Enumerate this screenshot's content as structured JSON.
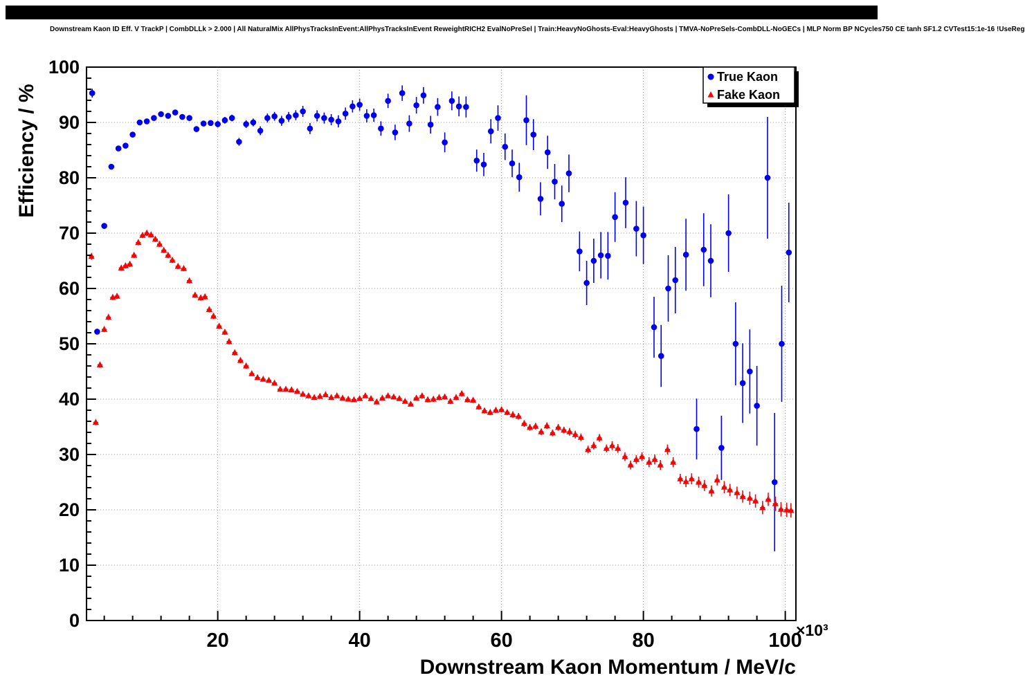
{
  "chart_data": {
    "type": "scatter",
    "title": "Downstream Kaon ID Eff. V TrackP | CombDLLk > 2.000 | All NaturalMix AllPhysTracksInEvent:AllPhysTracksInEvent ReweightRICH2 EvalNoPreSel | Train:HeavyNoGhosts-Eval:HeavyGhosts | TMVA-NoPreSels-CombDLL-NoGECs | MLP Norm BP NCycles750 CE tanh SF1.2 CVTest15:1e-16 !UseReg",
    "xlabel": "Downstream Kaon Momentum / MeV/c",
    "ylabel": "Efficiency / %",
    "x_scale_label": "×10³",
    "xlim": [
      1.5,
      101.5
    ],
    "ylim": [
      0,
      100
    ],
    "x_ticks": [
      20,
      40,
      60,
      80,
      100
    ],
    "y_ticks": [
      0,
      10,
      20,
      30,
      40,
      50,
      60,
      70,
      80,
      90,
      100
    ],
    "grid": true,
    "legend_position": "top-right",
    "colors": {
      "grid": "#999999",
      "frame": "#000000"
    },
    "series": [
      {
        "name": "True Kaon",
        "marker": "circle",
        "color": "#0000f0",
        "points": [
          [
            2.3,
            95.3,
            0.8
          ],
          [
            3.0,
            52.2,
            0.5
          ],
          [
            4.0,
            71.3,
            0.5
          ],
          [
            5.0,
            82.0,
            0.5
          ],
          [
            6.0,
            85.3,
            0.5
          ],
          [
            7.0,
            85.8,
            0.5
          ],
          [
            8.0,
            87.8,
            0.5
          ],
          [
            9.0,
            90.0,
            0.4
          ],
          [
            10.0,
            90.2,
            0.4
          ],
          [
            11.0,
            90.8,
            0.4
          ],
          [
            12.0,
            91.5,
            0.4
          ],
          [
            13.0,
            91.2,
            0.4
          ],
          [
            14.0,
            91.8,
            0.4
          ],
          [
            15.0,
            91.0,
            0.4
          ],
          [
            16.0,
            90.8,
            0.5
          ],
          [
            17.0,
            88.8,
            0.5
          ],
          [
            18.0,
            89.8,
            0.5
          ],
          [
            19.0,
            89.9,
            0.5
          ],
          [
            20.0,
            89.7,
            0.6
          ],
          [
            21.0,
            90.4,
            0.6
          ],
          [
            22.0,
            90.8,
            0.6
          ],
          [
            23.0,
            86.5,
            0.7
          ],
          [
            24.0,
            89.7,
            0.7
          ],
          [
            25.0,
            90.0,
            0.7
          ],
          [
            26.0,
            88.5,
            0.8
          ],
          [
            27.0,
            90.8,
            0.8
          ],
          [
            28.0,
            91.1,
            0.8
          ],
          [
            29.0,
            90.3,
            0.9
          ],
          [
            30.0,
            91.0,
            0.9
          ],
          [
            31.0,
            91.3,
            0.9
          ],
          [
            32.0,
            92.0,
            1.0
          ],
          [
            33.0,
            88.9,
            1.0
          ],
          [
            34.0,
            91.2,
            1.0
          ],
          [
            35.0,
            90.8,
            1.0
          ],
          [
            36.0,
            90.5,
            1.0
          ],
          [
            37.0,
            90.2,
            1.1
          ],
          [
            38.0,
            91.6,
            1.1
          ],
          [
            39.0,
            92.9,
            1.1
          ],
          [
            40.0,
            93.2,
            1.1
          ],
          [
            41.0,
            91.2,
            1.2
          ],
          [
            42.0,
            91.3,
            1.2
          ],
          [
            43.0,
            88.9,
            1.3
          ],
          [
            44.0,
            93.9,
            1.3
          ],
          [
            45.0,
            88.2,
            1.4
          ],
          [
            46.0,
            95.3,
            1.4
          ],
          [
            47.0,
            89.8,
            1.5
          ],
          [
            48.0,
            93.1,
            1.5
          ],
          [
            49.0,
            94.9,
            1.5
          ],
          [
            50.0,
            89.6,
            1.6
          ],
          [
            51.0,
            92.8,
            1.6
          ],
          [
            52.0,
            86.4,
            1.8
          ],
          [
            53.0,
            93.9,
            1.7
          ],
          [
            54.0,
            92.9,
            1.8
          ],
          [
            55.0,
            92.8,
            1.9
          ],
          [
            56.5,
            83.1,
            2.0
          ],
          [
            57.5,
            82.4,
            2.1
          ],
          [
            58.5,
            88.4,
            2.2
          ],
          [
            59.5,
            90.8,
            2.3
          ],
          [
            60.5,
            85.6,
            2.4
          ],
          [
            61.5,
            82.6,
            2.5
          ],
          [
            62.5,
            80.1,
            2.6
          ],
          [
            63.5,
            90.4,
            4.5
          ],
          [
            64.5,
            87.8,
            2.8
          ],
          [
            65.5,
            76.2,
            3.0
          ],
          [
            66.5,
            84.6,
            3.0
          ],
          [
            67.5,
            79.3,
            3.2
          ],
          [
            68.5,
            75.3,
            3.3
          ],
          [
            69.5,
            80.8,
            3.4
          ],
          [
            71.0,
            66.7,
            3.6
          ],
          [
            72.0,
            61.0,
            4.0
          ],
          [
            73.0,
            65.0,
            4.0
          ],
          [
            74.0,
            66.0,
            4.2
          ],
          [
            75.0,
            65.9,
            4.3
          ],
          [
            76.0,
            72.9,
            4.5
          ],
          [
            77.5,
            75.5,
            4.6
          ],
          [
            79.0,
            70.8,
            5.0
          ],
          [
            80.0,
            69.6,
            5.2
          ],
          [
            81.5,
            53.0,
            5.5
          ],
          [
            82.5,
            47.8,
            5.6
          ],
          [
            83.5,
            60.0,
            6.0
          ],
          [
            84.5,
            61.5,
            6.0
          ],
          [
            86.0,
            66.1,
            6.5
          ],
          [
            87.5,
            34.6,
            5.5
          ],
          [
            88.5,
            67.0,
            6.6
          ],
          [
            89.5,
            65.0,
            6.6
          ],
          [
            91.0,
            31.2,
            5.8
          ],
          [
            92.0,
            70.0,
            7.0
          ],
          [
            93.0,
            50.0,
            7.5
          ],
          [
            94.0,
            42.9,
            7.2
          ],
          [
            95.0,
            45.0,
            7.6
          ],
          [
            96.0,
            38.8,
            7.2
          ],
          [
            97.5,
            80.0,
            11.0
          ],
          [
            98.5,
            25.0,
            12.5
          ],
          [
            99.5,
            50.0,
            10.5
          ],
          [
            100.5,
            66.5,
            9.0
          ]
        ]
      },
      {
        "name": "Fake Kaon",
        "marker": "triangle",
        "color": "#f00808",
        "points": [
          [
            2.2,
            65.8,
            0.6
          ],
          [
            2.8,
            35.8,
            0.5
          ],
          [
            3.4,
            46.2,
            0.5
          ],
          [
            4.0,
            52.6,
            0.5
          ],
          [
            4.6,
            54.8,
            0.5
          ],
          [
            5.2,
            58.4,
            0.5
          ],
          [
            5.8,
            58.6,
            0.5
          ],
          [
            6.4,
            63.7,
            0.5
          ],
          [
            7.0,
            64.1,
            0.5
          ],
          [
            7.6,
            64.4,
            0.5
          ],
          [
            8.2,
            66.0,
            0.5
          ],
          [
            8.8,
            68.3,
            0.5
          ],
          [
            9.4,
            69.6,
            0.5
          ],
          [
            10.0,
            70.0,
            0.5
          ],
          [
            10.6,
            69.7,
            0.5
          ],
          [
            11.2,
            68.9,
            0.5
          ],
          [
            11.8,
            68.0,
            0.5
          ],
          [
            12.4,
            66.9,
            0.5
          ],
          [
            13.0,
            66.0,
            0.5
          ],
          [
            13.6,
            65.1,
            0.5
          ],
          [
            14.4,
            64.0,
            0.5
          ],
          [
            15.2,
            63.6,
            0.5
          ],
          [
            16.0,
            61.4,
            0.5
          ],
          [
            16.8,
            58.8,
            0.5
          ],
          [
            17.6,
            58.3,
            0.5
          ],
          [
            18.2,
            58.5,
            0.5
          ],
          [
            18.8,
            56.2,
            0.5
          ],
          [
            19.4,
            55.0,
            0.5
          ],
          [
            20.2,
            53.2,
            0.5
          ],
          [
            21.0,
            52.1,
            0.5
          ],
          [
            21.6,
            50.4,
            0.5
          ],
          [
            22.4,
            48.4,
            0.5
          ],
          [
            23.2,
            47.0,
            0.5
          ],
          [
            24.0,
            46.0,
            0.5
          ],
          [
            24.8,
            44.6,
            0.4
          ],
          [
            25.6,
            43.9,
            0.4
          ],
          [
            26.4,
            43.6,
            0.4
          ],
          [
            27.2,
            43.4,
            0.4
          ],
          [
            28.0,
            42.9,
            0.4
          ],
          [
            28.8,
            41.8,
            0.4
          ],
          [
            29.6,
            41.8,
            0.4
          ],
          [
            30.4,
            41.7,
            0.4
          ],
          [
            31.2,
            41.4,
            0.4
          ],
          [
            32.0,
            40.9,
            0.4
          ],
          [
            32.8,
            40.6,
            0.4
          ],
          [
            33.6,
            40.3,
            0.4
          ],
          [
            34.4,
            40.5,
            0.4
          ],
          [
            35.2,
            40.8,
            0.4
          ],
          [
            36.0,
            40.3,
            0.4
          ],
          [
            36.8,
            40.6,
            0.4
          ],
          [
            37.6,
            40.2,
            0.4
          ],
          [
            38.4,
            40.0,
            0.4
          ],
          [
            39.2,
            39.9,
            0.4
          ],
          [
            40.0,
            40.1,
            0.4
          ],
          [
            40.8,
            40.6,
            0.4
          ],
          [
            41.6,
            40.1,
            0.4
          ],
          [
            42.4,
            39.5,
            0.4
          ],
          [
            43.2,
            40.2,
            0.4
          ],
          [
            44.0,
            40.6,
            0.4
          ],
          [
            44.8,
            40.4,
            0.4
          ],
          [
            45.6,
            40.1,
            0.4
          ],
          [
            46.4,
            39.6,
            0.4
          ],
          [
            47.2,
            39.1,
            0.4
          ],
          [
            48.0,
            40.2,
            0.4
          ],
          [
            48.8,
            40.6,
            0.5
          ],
          [
            49.6,
            39.9,
            0.5
          ],
          [
            50.4,
            40.0,
            0.5
          ],
          [
            51.2,
            40.3,
            0.5
          ],
          [
            52.0,
            40.4,
            0.5
          ],
          [
            52.8,
            39.6,
            0.5
          ],
          [
            53.6,
            40.3,
            0.5
          ],
          [
            54.4,
            41.0,
            0.5
          ],
          [
            55.2,
            39.9,
            0.5
          ],
          [
            56.0,
            39.8,
            0.5
          ],
          [
            56.8,
            38.6,
            0.5
          ],
          [
            57.6,
            37.9,
            0.5
          ],
          [
            58.4,
            37.6,
            0.5
          ],
          [
            59.2,
            38.0,
            0.5
          ],
          [
            60.0,
            38.1,
            0.5
          ],
          [
            60.8,
            37.6,
            0.5
          ],
          [
            61.6,
            37.2,
            0.6
          ],
          [
            62.4,
            36.9,
            0.6
          ],
          [
            63.2,
            35.6,
            0.6
          ],
          [
            64.0,
            34.9,
            0.6
          ],
          [
            64.8,
            35.1,
            0.6
          ],
          [
            65.6,
            34.1,
            0.6
          ],
          [
            66.4,
            35.2,
            0.6
          ],
          [
            67.2,
            33.9,
            0.6
          ],
          [
            68.0,
            34.9,
            0.6
          ],
          [
            68.8,
            34.4,
            0.6
          ],
          [
            69.6,
            34.1,
            0.7
          ],
          [
            70.4,
            33.6,
            0.7
          ],
          [
            71.2,
            33.1,
            0.7
          ],
          [
            72.2,
            30.9,
            0.7
          ],
          [
            73.0,
            31.6,
            0.7
          ],
          [
            73.8,
            33.0,
            0.7
          ],
          [
            74.8,
            31.1,
            0.7
          ],
          [
            75.6,
            31.6,
            0.8
          ],
          [
            76.4,
            31.1,
            0.8
          ],
          [
            77.4,
            29.6,
            0.8
          ],
          [
            78.2,
            28.1,
            0.8
          ],
          [
            79.0,
            29.1,
            0.8
          ],
          [
            79.8,
            29.6,
            0.8
          ],
          [
            80.8,
            28.6,
            0.9
          ],
          [
            81.6,
            29.1,
            0.9
          ],
          [
            82.4,
            28.1,
            0.9
          ],
          [
            83.4,
            30.9,
            0.9
          ],
          [
            84.2,
            28.6,
            0.9
          ],
          [
            85.2,
            25.6,
            0.9
          ],
          [
            86.0,
            25.1,
            1.0
          ],
          [
            86.8,
            25.6,
            1.0
          ],
          [
            87.8,
            25.0,
            1.0
          ],
          [
            88.6,
            24.4,
            1.0
          ],
          [
            89.6,
            23.4,
            1.0
          ],
          [
            90.4,
            25.4,
            1.0
          ],
          [
            91.4,
            24.1,
            1.1
          ],
          [
            92.2,
            23.6,
            1.1
          ],
          [
            93.2,
            23.1,
            1.1
          ],
          [
            94.0,
            22.4,
            1.1
          ],
          [
            95.0,
            22.1,
            1.2
          ],
          [
            95.8,
            21.6,
            1.2
          ],
          [
            96.8,
            20.4,
            1.2
          ],
          [
            97.6,
            21.9,
            1.2
          ],
          [
            98.6,
            21.1,
            1.3
          ],
          [
            99.4,
            20.1,
            1.3
          ],
          [
            100.2,
            20.0,
            1.3
          ],
          [
            100.8,
            19.9,
            1.3
          ]
        ]
      }
    ]
  }
}
